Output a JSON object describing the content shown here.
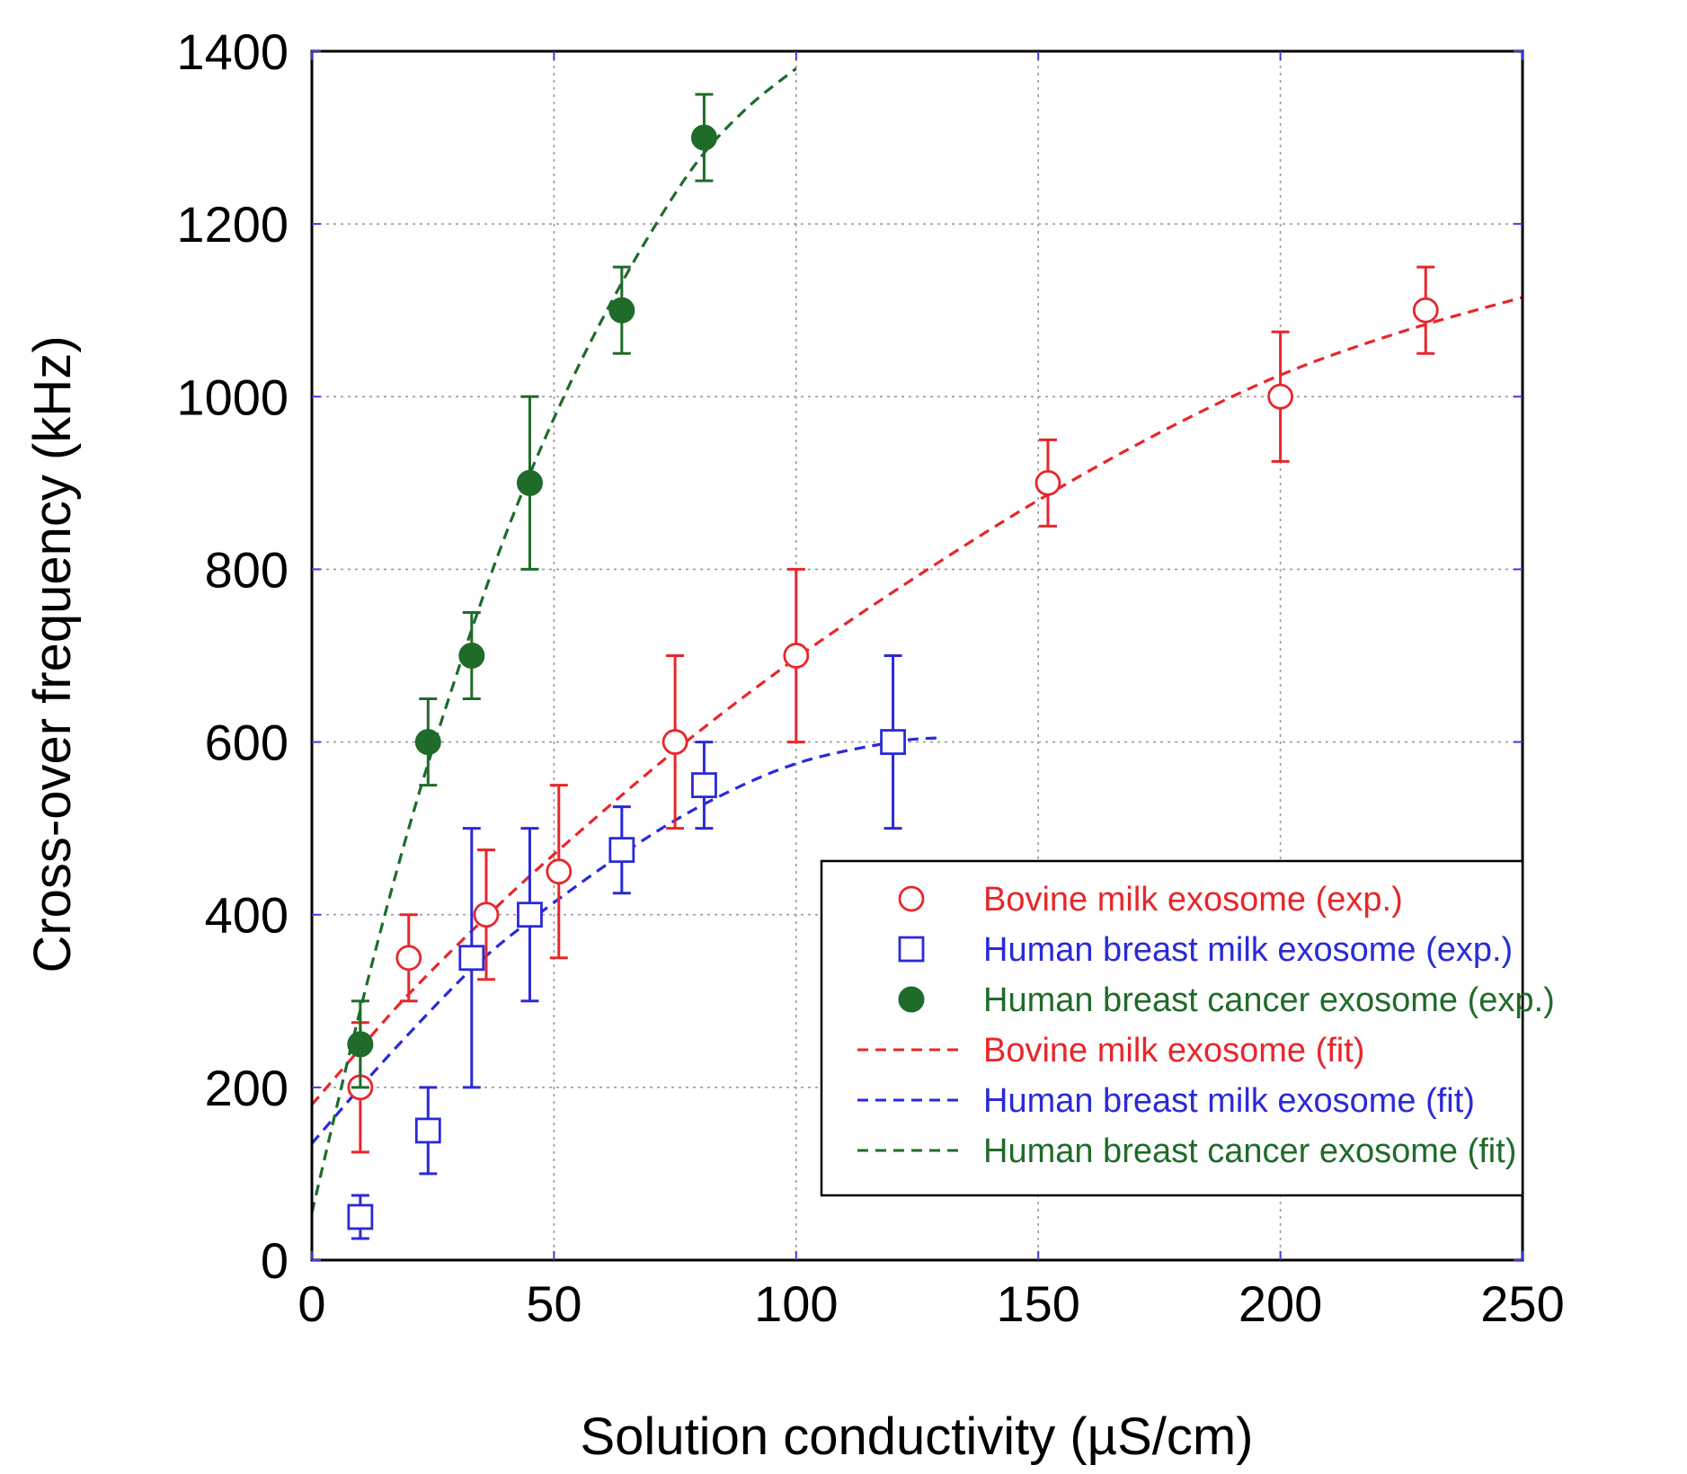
{
  "chart_data": {
    "type": "scatter",
    "xlabel": "Solution conductivity (µS/cm)",
    "ylabel": "Cross-over frequency (kHz)",
    "xlim": [
      0,
      250
    ],
    "ylim": [
      0,
      1400
    ],
    "xticks": [
      "0",
      "50",
      "100",
      "150",
      "200",
      "250"
    ],
    "yticks": [
      "0",
      "200",
      "400",
      "600",
      "800",
      "1000",
      "1200",
      "1400"
    ],
    "grid": true,
    "legend_position": "lower-right",
    "colors": {
      "red": "#e8262a",
      "blue": "#2a2ad8",
      "green": "#1f6b2a"
    },
    "series": [
      {
        "name": "Bovine milk exosome (exp.)",
        "marker": "open-circle",
        "color": "#e8262a",
        "points": [
          {
            "x": 10,
            "y": 200,
            "ylo": 125,
            "yhi": 275
          },
          {
            "x": 20,
            "y": 350,
            "ylo": 300,
            "yhi": 400
          },
          {
            "x": 36,
            "y": 400,
            "ylo": 325,
            "yhi": 475
          },
          {
            "x": 51,
            "y": 450,
            "ylo": 350,
            "yhi": 550
          },
          {
            "x": 75,
            "y": 600,
            "ylo": 500,
            "yhi": 700
          },
          {
            "x": 100,
            "y": 700,
            "ylo": 600,
            "yhi": 800
          },
          {
            "x": 152,
            "y": 900,
            "ylo": 850,
            "yhi": 950
          },
          {
            "x": 200,
            "y": 1000,
            "ylo": 925,
            "yhi": 1075
          },
          {
            "x": 230,
            "y": 1100,
            "ylo": 1050,
            "yhi": 1150
          }
        ]
      },
      {
        "name": "Human breast milk exosome (exp.)",
        "marker": "open-square",
        "color": "#2a2ad8",
        "points": [
          {
            "x": 10,
            "y": 50,
            "ylo": 25,
            "yhi": 75
          },
          {
            "x": 24,
            "y": 150,
            "ylo": 100,
            "yhi": 200
          },
          {
            "x": 33,
            "y": 350,
            "ylo": 200,
            "yhi": 500
          },
          {
            "x": 45,
            "y": 400,
            "ylo": 300,
            "yhi": 500
          },
          {
            "x": 64,
            "y": 475,
            "ylo": 425,
            "yhi": 525
          },
          {
            "x": 81,
            "y": 550,
            "ylo": 500,
            "yhi": 600
          },
          {
            "x": 120,
            "y": 600,
            "ylo": 500,
            "yhi": 700
          }
        ]
      },
      {
        "name": "Human breast cancer exosome (exp.)",
        "marker": "filled-circle",
        "color": "#1f6b2a",
        "points": [
          {
            "x": 10,
            "y": 250,
            "ylo": 200,
            "yhi": 300
          },
          {
            "x": 24,
            "y": 600,
            "ylo": 550,
            "yhi": 650
          },
          {
            "x": 33,
            "y": 700,
            "ylo": 650,
            "yhi": 750
          },
          {
            "x": 45,
            "y": 900,
            "ylo": 800,
            "yhi": 1000
          },
          {
            "x": 64,
            "y": 1100,
            "ylo": 1050,
            "yhi": 1150
          },
          {
            "x": 81,
            "y": 1300,
            "ylo": 1250,
            "yhi": 1350
          }
        ]
      }
    ],
    "fits": [
      {
        "name": "Bovine milk exosome (fit)",
        "color": "#e8262a",
        "x": [
          0,
          10,
          20,
          35,
          50,
          75,
          100,
          125,
          150,
          175,
          200,
          225,
          250
        ],
        "y": [
          180,
          245,
          308,
          392,
          470,
          590,
          697,
          792,
          880,
          958,
          1025,
          1075,
          1115
        ]
      },
      {
        "name": "Human breast milk exosome (fit)",
        "color": "#2a2ad8",
        "x": [
          0,
          10,
          20,
          33,
          45,
          64,
          81,
          100,
          120,
          130
        ],
        "y": [
          135,
          200,
          262,
          337,
          393,
          470,
          528,
          575,
          600,
          605
        ]
      },
      {
        "name": "Human breast cancer exosome (fit)",
        "color": "#1f6b2a",
        "x": [
          0,
          10,
          20,
          30,
          40,
          50,
          60,
          70,
          80,
          90,
          100
        ],
        "y": [
          55,
          290,
          500,
          680,
          840,
          975,
          1090,
          1190,
          1275,
          1335,
          1380
        ]
      }
    ],
    "legend": [
      {
        "label": "Bovine milk exosome (exp.)",
        "symbol": "open-circle",
        "color": "#e8262a"
      },
      {
        "label": "Human breast milk exosome (exp.)",
        "symbol": "open-square",
        "color": "#2a2ad8"
      },
      {
        "label": "Human breast cancer exosome (exp.)",
        "symbol": "filled-circle",
        "color": "#1f6b2a"
      },
      {
        "label": "Bovine milk exosome (fit)",
        "symbol": "dashed-line",
        "color": "#e8262a"
      },
      {
        "label": "Human breast milk exosome (fit)",
        "symbol": "dashed-line",
        "color": "#2a2ad8"
      },
      {
        "label": "Human breast cancer exosome (fit)",
        "symbol": "dashed-line",
        "color": "#1f6b2a"
      }
    ]
  }
}
